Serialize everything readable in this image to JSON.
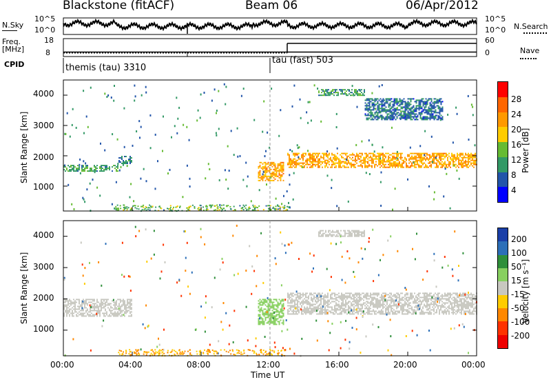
{
  "header": {
    "station": "Blackstone (fitACF)",
    "beam": "Beam 06",
    "date": "06/Apr/2012"
  },
  "noise_panel": {
    "left_label": "N.Sky",
    "left_ticks": [
      "10^5",
      "10^0"
    ],
    "right_ticks": [
      "10^5",
      "10^0"
    ],
    "right_label": "N.Search"
  },
  "freq_panel": {
    "left_label_1": "Freq.",
    "left_label_2": "[MHz]",
    "left_ticks": [
      "18",
      "8"
    ],
    "right_ticks": [
      "60",
      "0"
    ],
    "right_label": "Nave"
  },
  "cpid_panel": {
    "label": "CPID",
    "mode1": "themis (tau) 3310",
    "mode2": "tau (fast) 503"
  },
  "power_panel": {
    "ylabel": "Slant Range [km]",
    "yticks": [
      "4000",
      "3000",
      "2000",
      "1000"
    ],
    "colorbar_label": "Power [dB]",
    "colorbar_ticks": [
      "28",
      "24",
      "20",
      "16",
      "12",
      "8",
      "4"
    ],
    "colorbar_colors": [
      "#ff0000",
      "#ff6600",
      "#ff9900",
      "#ffcc00",
      "#66bb33",
      "#339966",
      "#2255aa",
      "#0000ff"
    ]
  },
  "velocity_panel": {
    "ylabel": "Slant Range [km]",
    "yticks": [
      "4000",
      "3000",
      "2000",
      "1000"
    ],
    "colorbar_label": "Velocity [m s⁻¹]",
    "colorbar_ticks": [
      "200",
      "100",
      "50",
      "15",
      "-15",
      "-50",
      "-100",
      "-200"
    ],
    "colorbar_colors": [
      "#1a3fa8",
      "#2c6fb8",
      "#2f8f3a",
      "#88d060",
      "#c8c8c0",
      "#ffcc00",
      "#ff8800",
      "#ff3300",
      "#ee0000"
    ]
  },
  "xaxis": {
    "ticks": [
      "00:00",
      "04:00",
      "08:00",
      "12:00",
      "16:00",
      "20:00",
      "00:00"
    ],
    "label": "Time UT"
  },
  "chart_data": {
    "type": "heatmap",
    "title": "Blackstone (fitACF)  Beam 06  06/Apr/2012",
    "xlabel": "Time UT",
    "ylabel": "Slant Range [km]",
    "x_range_hours": [
      0,
      24
    ],
    "ylim": [
      180,
      4500
    ],
    "power_echo_bands": [
      {
        "t_start": 0.0,
        "t_end": 3.2,
        "range_start": 1500,
        "range_end": 1700,
        "power_db": 10
      },
      {
        "t_start": 3.2,
        "t_end": 4.0,
        "range_start": 1750,
        "range_end": 2000,
        "power_db": 8
      },
      {
        "t_start": 11.3,
        "t_end": 12.8,
        "range_start": 1200,
        "range_end": 1800,
        "power_db": 22
      },
      {
        "t_start": 13.0,
        "t_end": 24.0,
        "range_start": 1600,
        "range_end": 2100,
        "power_db": 22
      },
      {
        "t_start": 14.8,
        "t_end": 17.5,
        "range_start": 4000,
        "range_end": 4200,
        "power_db": 10
      },
      {
        "t_start": 17.5,
        "t_end": 22.0,
        "range_start": 3200,
        "range_end": 3900,
        "power_db": 6
      }
    ],
    "velocity_echo_bands": [
      {
        "t_start": 0.0,
        "t_end": 4.0,
        "range_start": 1450,
        "range_end": 2000,
        "velocity_ms": 0
      },
      {
        "t_start": 11.3,
        "t_end": 12.8,
        "range_start": 1200,
        "range_end": 2000,
        "velocity_ms": 30
      },
      {
        "t_start": 13.0,
        "t_end": 24.0,
        "range_start": 1500,
        "range_end": 2200,
        "velocity_ms": 0
      },
      {
        "t_start": 14.8,
        "t_end": 17.5,
        "range_start": 4000,
        "range_end": 4200,
        "velocity_ms": 10
      }
    ],
    "frequency_mhz": [
      {
        "t_start": 0.0,
        "t_end": 24.0,
        "value": 10.5
      }
    ],
    "cpid_changes": [
      {
        "t": 0.0,
        "mode": "themis (tau) 3310"
      },
      {
        "t": 12.0,
        "mode": "tau (fast) 503"
      }
    ],
    "nave_changes": [
      {
        "t": 0.0,
        "value": 12
      },
      {
        "t": 13.0,
        "value": 44
      }
    ]
  }
}
